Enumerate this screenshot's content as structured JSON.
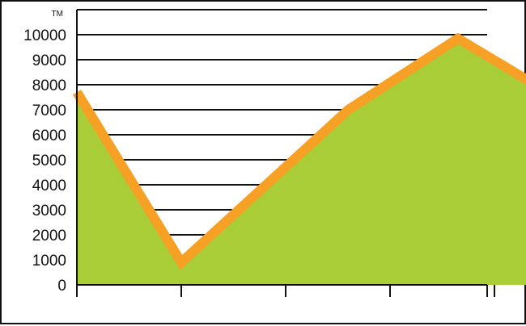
{
  "chart_data": {
    "type": "area",
    "title": "",
    "xlabel": "",
    "ylabel": "",
    "top_label": "TM",
    "ylim": [
      0,
      11000
    ],
    "y_ticks": [
      0,
      1000,
      2000,
      3000,
      4000,
      5000,
      6000,
      7000,
      8000,
      9000,
      10000
    ],
    "x_ticks": [
      0,
      1,
      2,
      3,
      4
    ],
    "x_tick_labels": [
      "",
      "",
      "",
      "",
      ""
    ],
    "x": [
      0,
      1,
      2.6,
      3.65,
      4.35,
      5
    ],
    "values": [
      7700,
      900,
      7000,
      9850,
      8100,
      8550
    ],
    "grid": true,
    "colors": {
      "area": "#a8cd37",
      "line": "#f6a125",
      "grid": "#111111",
      "axis": "#111111",
      "border": "#111111"
    }
  }
}
